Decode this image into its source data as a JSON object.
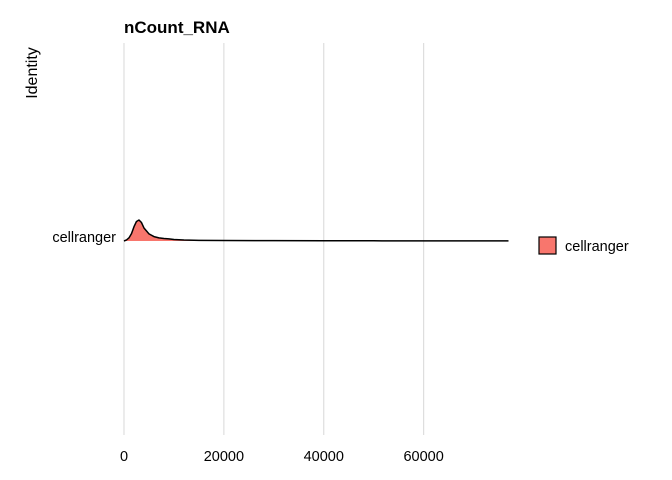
{
  "chart_data": {
    "type": "ridgeline",
    "title": "nCount_RNA",
    "xlabel": "",
    "ylabel": "Identity",
    "xlim": [
      0,
      77000
    ],
    "x_ticks": [
      0,
      20000,
      40000,
      60000
    ],
    "x_tick_labels": [
      "0",
      "20000",
      "40000",
      "60000"
    ],
    "grid": "vertical major",
    "legend": {
      "position": "right",
      "entries": [
        "cellranger"
      ]
    },
    "series": [
      {
        "name": "cellranger",
        "color": "#F8766D",
        "outline": "#000000",
        "density": {
          "x": [
            0,
            500,
            1000,
            1500,
            2000,
            2500,
            3000,
            3500,
            4000,
            5000,
            6000,
            7000,
            8000,
            9000,
            10000,
            12000,
            15000,
            20000,
            30000,
            40000,
            50000,
            60000,
            70000,
            77000
          ],
          "y": [
            0,
            0.05,
            0.15,
            0.35,
            0.68,
            0.93,
            1.0,
            0.88,
            0.62,
            0.34,
            0.21,
            0.15,
            0.12,
            0.1,
            0.07,
            0.045,
            0.03,
            0.022,
            0.016,
            0.012,
            0.009,
            0.007,
            0.005,
            0.004
          ]
        }
      }
    ]
  }
}
